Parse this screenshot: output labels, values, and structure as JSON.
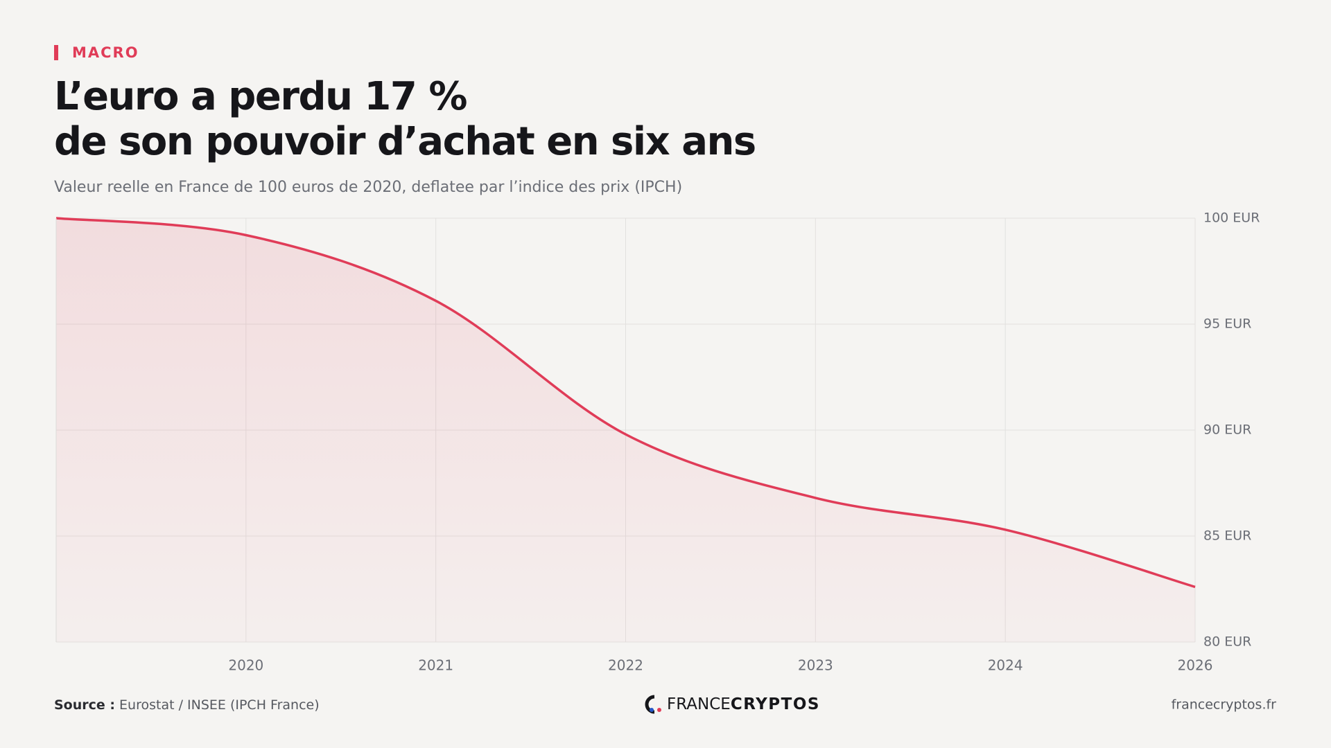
{
  "header": {
    "tag": "MACRO",
    "title_lines": [
      "L’euro a perdu 17 %",
      "de son pouvoir d’achat en six ans"
    ],
    "subtitle": "Valeur reelle en France de 100 euros de 2020, deflatee par l’indice des prix (IPCH)"
  },
  "chart_data": {
    "type": "area",
    "categories": [
      null,
      "2020",
      "2021",
      "2022",
      "2023",
      "2024",
      "2026"
    ],
    "series": [
      {
        "color": "#e03c58",
        "values": [
          100,
          99.2,
          96.1,
          89.8,
          86.8,
          85.3,
          82.6
        ]
      }
    ],
    "ylim": [
      80,
      100
    ],
    "yticks": [
      {
        "value": 80,
        "label": "80 EUR"
      },
      {
        "value": 85,
        "label": "85 EUR"
      },
      {
        "value": 90,
        "label": "90 EUR"
      },
      {
        "value": 95,
        "label": "95 EUR"
      },
      {
        "value": 100,
        "label": "100 EUR"
      }
    ],
    "grid": true
  },
  "footer": {
    "source_label": "Source :",
    "source": "Eurostat / INSEE (IPCH France)",
    "brand_light": "FRANCE",
    "brand_bold": "CRYPTOS",
    "site": "francecryptos.fr"
  }
}
